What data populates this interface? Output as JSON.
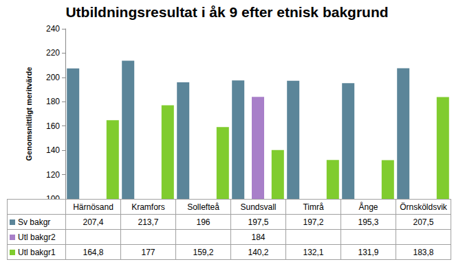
{
  "chart_data": {
    "type": "bar",
    "title": "Utbildningsresultat i åk 9 efter etnisk bakgrund",
    "y_label": "Genomsnittligt meritvärde",
    "categories": [
      "Härnösand",
      "Kramfors",
      "Sollefteå",
      "Sundsvall",
      "Timrå",
      "Ånge",
      "Örnsköldsvik"
    ],
    "series": [
      {
        "name": "Sv bakgr",
        "color": "#5b8599",
        "values": [
          207.4,
          213.7,
          196,
          197.5,
          197.2,
          195.3,
          207.5
        ],
        "value_labels": [
          "207,4",
          "213,7",
          "196",
          "197,5",
          "197,2",
          "195,3",
          "207,5"
        ]
      },
      {
        "name": "Utl bakgr2",
        "color": "#a87fc9",
        "values": [
          null,
          null,
          null,
          184,
          null,
          null,
          null
        ],
        "value_labels": [
          null,
          null,
          null,
          "184",
          null,
          null,
          null
        ]
      },
      {
        "name": "Utl bakgr1",
        "color": "#80cc2e",
        "values": [
          164.8,
          177,
          159.2,
          140.2,
          132.1,
          131.9,
          183.8
        ],
        "value_labels": [
          "164,8",
          "177",
          "159,2",
          "140,2",
          "132,1",
          "131,9",
          "183,8"
        ]
      }
    ],
    "ylim": [
      100,
      240
    ],
    "yticks": [
      100,
      120,
      140,
      160,
      180,
      200,
      220,
      240
    ],
    "grid": false,
    "tick_labels": "y"
  }
}
